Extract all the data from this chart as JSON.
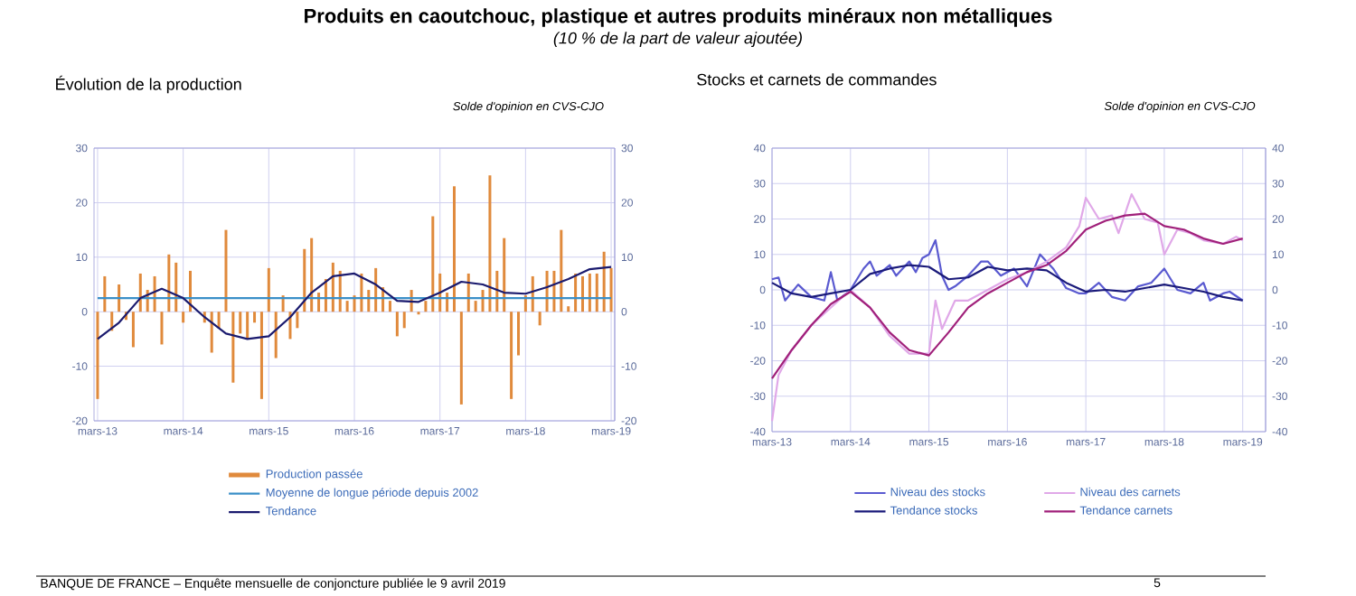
{
  "chart_data": [
    {
      "type": "other",
      "title": "Produits en caoutchouc, plastique et autres produits minéraux non métalliques",
      "subtitle": "(10 % de la part de valeur ajoutée)",
      "annotations": [
        "BANQUE DE FRANCE – Enquête mensuelle de conjoncture publiée le 9 avril 2019",
        "5"
      ]
    },
    {
      "type": "bar",
      "title": "Évolution de la production",
      "subtitle": "Solde d'opinion en CVS-CJO",
      "x": [
        "2013-03",
        "2013-04",
        "2013-05",
        "2013-06",
        "2013-07",
        "2013-08",
        "2013-09",
        "2013-10",
        "2013-11",
        "2013-12",
        "2014-01",
        "2014-02",
        "2014-03",
        "2014-04",
        "2014-05",
        "2014-06",
        "2014-07",
        "2014-08",
        "2014-09",
        "2014-10",
        "2014-11",
        "2014-12",
        "2015-01",
        "2015-02",
        "2015-03",
        "2015-04",
        "2015-05",
        "2015-06",
        "2015-07",
        "2015-08",
        "2015-09",
        "2015-10",
        "2015-11",
        "2015-12",
        "2016-01",
        "2016-02",
        "2016-03",
        "2016-04",
        "2016-05",
        "2016-06",
        "2016-07",
        "2016-08",
        "2016-09",
        "2016-10",
        "2016-11",
        "2016-12",
        "2017-01",
        "2017-02",
        "2017-03",
        "2017-04",
        "2017-05",
        "2017-06",
        "2017-07",
        "2017-08",
        "2017-09",
        "2017-10",
        "2017-11",
        "2017-12",
        "2018-01",
        "2018-02",
        "2018-03",
        "2018-04",
        "2018-05",
        "2018-06",
        "2018-07",
        "2018-08",
        "2018-09",
        "2018-10",
        "2018-11",
        "2018-12",
        "2019-01",
        "2019-02",
        "2019-03"
      ],
      "series": [
        {
          "name": "Production passée",
          "type": "bar",
          "color": "#e08a3c",
          "values": [
            -16,
            6.5,
            -3.5,
            5,
            -1.5,
            -6.5,
            7,
            4,
            6.5,
            -6,
            10.5,
            9,
            -2,
            7.5,
            null,
            -2,
            -7.5,
            -3,
            15,
            -13,
            -4,
            -5,
            -2,
            -16,
            8,
            -8.5,
            3,
            -5,
            -3,
            11.5,
            13.5,
            3.5,
            6,
            9,
            7.5,
            2,
            3,
            7,
            4,
            8,
            4.5,
            2,
            -4.5,
            -3,
            4,
            -0.5,
            2,
            17.5,
            7,
            3.5,
            23,
            -17,
            7,
            2,
            4,
            25,
            7.5,
            13.5,
            -16,
            -8,
            3,
            6.5,
            -2.5,
            7.5,
            7.5,
            15,
            1,
            7,
            6.5,
            7,
            7,
            11,
            8
          ]
        },
        {
          "name": "Moyenne de longue période depuis 2002",
          "type": "line",
          "color": "#3a8fc8",
          "x": [
            "2013-03",
            "2019-03"
          ],
          "values": [
            2.5,
            2.5
          ]
        },
        {
          "name": "Tendance",
          "type": "line",
          "color": "#1a1a6e",
          "x": [
            "2013-03",
            "2013-06",
            "2013-09",
            "2013-12",
            "2014-03",
            "2014-06",
            "2014-09",
            "2014-12",
            "2015-03",
            "2015-06",
            "2015-09",
            "2015-12",
            "2016-03",
            "2016-06",
            "2016-09",
            "2016-12",
            "2017-03",
            "2017-06",
            "2017-09",
            "2017-12",
            "2018-03",
            "2018-06",
            "2018-09",
            "2018-12",
            "2019-03"
          ],
          "values": [
            -5,
            -2,
            2.5,
            4.2,
            2.5,
            -1,
            -4,
            -5,
            -4.5,
            -1,
            3.5,
            6.5,
            7,
            5,
            2,
            1.8,
            3.5,
            5.5,
            5,
            3.5,
            3.3,
            4.5,
            6,
            7.8,
            8.2
          ]
        }
      ],
      "xlim": [
        "2013-02-15",
        "2019-03-15"
      ],
      "xticks": [
        {
          "value": "2013-03",
          "label": "mars-13"
        },
        {
          "value": "2014-03",
          "label": "mars-14"
        },
        {
          "value": "2015-03",
          "label": "mars-15"
        },
        {
          "value": "2016-03",
          "label": "mars-16"
        },
        {
          "value": "2017-03",
          "label": "mars-17"
        },
        {
          "value": "2018-03",
          "label": "mars-18"
        },
        {
          "value": "2019-03",
          "label": "mars-19"
        }
      ],
      "ylim": [
        -20,
        30
      ],
      "yticks": [
        -20,
        -10,
        0,
        10,
        20,
        30
      ],
      "y2lim": [
        -20,
        30
      ],
      "y2ticks": [
        -20,
        -10,
        0,
        10,
        20,
        30
      ],
      "grid": true,
      "legend": "bottom"
    },
    {
      "type": "line",
      "title": "Stocks et carnets de commandes",
      "subtitle": "Solde d'opinion en CVS-CJO",
      "series": [
        {
          "name": "Niveau des stocks",
          "color": "#5a5ad0",
          "x": [
            "2013-03",
            "2013-04",
            "2013-05",
            "2013-07",
            "2013-09",
            "2013-11",
            "2013-12",
            "2014-01",
            "2014-03",
            "2014-05",
            "2014-06",
            "2014-07",
            "2014-09",
            "2014-10",
            "2014-12",
            "2015-01",
            "2015-02",
            "2015-03",
            "2015-04",
            "2015-05",
            "2015-06",
            "2015-07",
            "2015-09",
            "2015-11",
            "2015-12",
            "2016-02",
            "2016-04",
            "2016-06",
            "2016-08",
            "2016-10",
            "2016-12",
            "2017-02",
            "2017-03",
            "2017-05",
            "2017-07",
            "2017-09",
            "2017-11",
            "2018-01",
            "2018-03",
            "2018-05",
            "2018-07",
            "2018-09",
            "2018-10",
            "2018-12",
            "2019-01",
            "2019-03"
          ],
          "values": [
            3,
            3.5,
            -3,
            1.5,
            -2,
            -3,
            5,
            -3,
            0,
            6,
            8,
            4,
            7,
            4,
            8,
            5,
            9,
            10,
            14,
            4,
            0,
            1,
            4,
            8,
            8,
            4,
            6,
            1,
            10,
            6,
            0.5,
            -1,
            -1,
            2,
            -2,
            -3,
            1,
            2,
            6,
            0,
            -1,
            2,
            -3,
            -1,
            -0.5,
            -3
          ]
        },
        {
          "name": "Niveau des carnets",
          "color": "#e0a8e8",
          "x": [
            "2013-03",
            "2013-04",
            "2013-06",
            "2013-09",
            "2013-12",
            "2014-03",
            "2014-06",
            "2014-09",
            "2014-12",
            "2015-03",
            "2015-04",
            "2015-05",
            "2015-07",
            "2015-09",
            "2015-12",
            "2016-03",
            "2016-06",
            "2016-09",
            "2016-12",
            "2017-02",
            "2017-03",
            "2017-05",
            "2017-07",
            "2017-08",
            "2017-10",
            "2017-12",
            "2018-02",
            "2018-03",
            "2018-05",
            "2018-07",
            "2018-09",
            "2018-12",
            "2019-02",
            "2019-03"
          ],
          "values": [
            -37,
            -24,
            -17,
            -10,
            -5,
            0,
            -5,
            -13,
            -18,
            -18,
            -3,
            -11,
            -3,
            -3,
            0,
            3,
            5,
            8,
            12,
            18,
            26,
            20,
            21,
            16,
            27,
            20,
            19,
            10,
            17,
            16,
            14,
            13,
            15,
            14
          ]
        },
        {
          "name": "Tendance stocks",
          "color": "#1a1a7a",
          "x": [
            "2013-03",
            "2013-06",
            "2013-09",
            "2013-12",
            "2014-03",
            "2014-06",
            "2014-09",
            "2014-12",
            "2015-03",
            "2015-06",
            "2015-09",
            "2015-12",
            "2016-03",
            "2016-06",
            "2016-09",
            "2016-12",
            "2017-03",
            "2017-06",
            "2017-09",
            "2017-12",
            "2018-03",
            "2018-06",
            "2018-09",
            "2018-12",
            "2019-03"
          ],
          "values": [
            2,
            -1,
            -2,
            -1,
            0,
            4.5,
            6,
            7,
            6.5,
            3,
            3.5,
            6.5,
            5.5,
            6,
            5.5,
            2,
            -0.5,
            0,
            -0.5,
            0.5,
            1.5,
            0.5,
            -0.5,
            -2,
            -3
          ]
        },
        {
          "name": "Tendance carnets",
          "color": "#a0207a",
          "x": [
            "2013-03",
            "2013-06",
            "2013-09",
            "2013-12",
            "2014-03",
            "2014-06",
            "2014-09",
            "2014-12",
            "2015-03",
            "2015-06",
            "2015-09",
            "2015-12",
            "2016-03",
            "2016-06",
            "2016-09",
            "2016-12",
            "2017-03",
            "2017-06",
            "2017-09",
            "2017-12",
            "2018-03",
            "2018-06",
            "2018-09",
            "2018-12",
            "2019-03"
          ],
          "values": [
            -25,
            -17,
            -10,
            -4,
            -0.5,
            -5,
            -12,
            -17,
            -18.5,
            -12,
            -5,
            -1,
            2,
            5,
            7,
            11,
            17,
            19.5,
            21,
            21.5,
            18,
            17,
            14.5,
            13,
            14.5
          ]
        }
      ],
      "xlim": [
        "2013-03",
        "2019-06-15"
      ],
      "xticks": [
        {
          "value": "2013-03",
          "label": "mars-13"
        },
        {
          "value": "2014-03",
          "label": "mars-14"
        },
        {
          "value": "2015-03",
          "label": "mars-15"
        },
        {
          "value": "2016-03",
          "label": "mars-16"
        },
        {
          "value": "2017-03",
          "label": "mars-17"
        },
        {
          "value": "2018-03",
          "label": "mars-18"
        },
        {
          "value": "2019-03",
          "label": "mars-19"
        }
      ],
      "ylim": [
        -40,
        40
      ],
      "yticks": [
        -40,
        -30,
        -20,
        -10,
        0,
        10,
        20,
        30,
        40
      ],
      "y2lim": [
        -40,
        40
      ],
      "y2ticks": [
        -40,
        -30,
        -20,
        -10,
        0,
        10,
        20,
        30,
        40
      ],
      "grid": true,
      "legend": "bottom"
    }
  ]
}
